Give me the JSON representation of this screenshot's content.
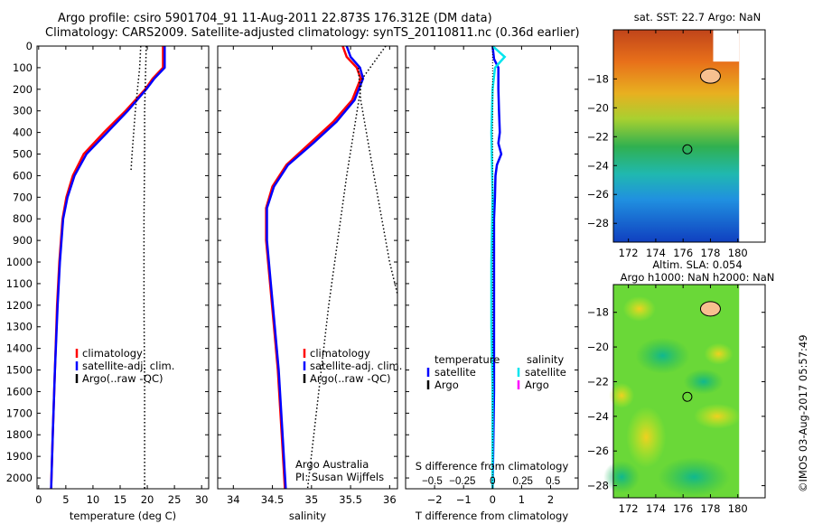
{
  "title": {
    "line1": "Argo profile: csiro 5901704_91 11-Aug-2011 22.873S 176.312E (DM data)",
    "line2": "Climatology: CARS2009. Satellite-adjusted climatology: synTS_20110811.nc (0.36d earlier)"
  },
  "colors": {
    "climatology": "#ff0000",
    "satellite": "#0000ff",
    "argo": "#000000",
    "s_satellite": "#00e5ee",
    "s_argo": "#ff00ff"
  },
  "chart_data": [
    {
      "type": "line",
      "id": "temperature",
      "xlabel": "temperature (deg C)",
      "xlim": [
        -0.3,
        31.3
      ],
      "ylim": [
        0,
        2050
      ],
      "xticks": [
        0,
        5,
        10,
        15,
        20,
        25,
        30
      ],
      "yticks": [
        0,
        100,
        200,
        300,
        400,
        500,
        600,
        700,
        800,
        900,
        1000,
        1100,
        1200,
        1300,
        1400,
        1500,
        1600,
        1700,
        1800,
        1900,
        2000
      ],
      "legend": {
        "placement": "bottom-center",
        "entries": [
          "climatology",
          "satellite-adj. clim.",
          "Argo(..raw -QC)"
        ]
      },
      "series": [
        {
          "name": "climatology",
          "depth": [
            0,
            100,
            150,
            200,
            300,
            400,
            500,
            600,
            700,
            800,
            1000,
            1200,
            1500,
            1800,
            2050
          ],
          "values": [
            22.9,
            22.9,
            21,
            19.6,
            16,
            12,
            8.3,
            6.3,
            5.1,
            4.4,
            3.8,
            3.4,
            3.0,
            2.6,
            2.3
          ]
        },
        {
          "name": "satellite-adj. clim.",
          "depth": [
            0,
            100,
            150,
            200,
            300,
            400,
            500,
            600,
            700,
            800,
            1000,
            1200,
            1500,
            1800,
            2050
          ],
          "values": [
            23.2,
            23.2,
            21.3,
            19.8,
            16.4,
            12.6,
            8.8,
            6.6,
            5.3,
            4.5,
            3.9,
            3.5,
            3.0,
            2.6,
            2.3
          ]
        },
        {
          "name": "Argo(..raw -QC)",
          "depth": [
            0,
            100,
            200,
            300,
            500,
            800,
            1200,
            1600,
            2050
          ],
          "values": [
            19.8,
            19.7,
            19.6,
            19.5,
            19.5,
            19.4,
            19.4,
            19.5,
            19.5
          ]
        },
        {
          "name": "Argo(..raw -QC) 2",
          "depth": [
            0,
            100,
            200,
            300,
            400,
            500,
            580
          ],
          "values": [
            18.8,
            18.6,
            18.2,
            17.8,
            17.5,
            17.2,
            17.0
          ]
        }
      ]
    },
    {
      "type": "line",
      "id": "salinity",
      "xlabel": "salinity",
      "xlim": [
        33.8,
        36.1
      ],
      "ylim": [
        0,
        2050
      ],
      "xticks": [
        34,
        34.5,
        35,
        35.5,
        36
      ],
      "legend": {
        "placement": "bottom-center",
        "entries": [
          "climatology",
          "satellite-adj. clim.",
          "Argo(..raw -QC)"
        ]
      },
      "annotation": [
        "Argo Australia",
        "PI: Susan Wijffels"
      ],
      "series": [
        {
          "name": "climatology",
          "depth": [
            0,
            50,
            100,
            150,
            250,
            350,
            450,
            550,
            650,
            750,
            900,
            1100,
            1300,
            1500,
            1800,
            2050
          ],
          "values": [
            35.4,
            35.45,
            35.58,
            35.63,
            35.52,
            35.28,
            34.98,
            34.68,
            34.5,
            34.42,
            34.42,
            34.47,
            34.52,
            34.57,
            34.62,
            34.66
          ]
        },
        {
          "name": "satellite-adj. clim.",
          "depth": [
            0,
            50,
            100,
            150,
            250,
            350,
            450,
            550,
            650,
            750,
            900,
            1100,
            1300,
            1500,
            1800,
            2050
          ],
          "values": [
            35.45,
            35.5,
            35.62,
            35.66,
            35.55,
            35.32,
            35.02,
            34.7,
            34.52,
            34.43,
            34.43,
            34.48,
            34.53,
            34.58,
            34.63,
            34.67
          ]
        },
        {
          "name": "Argo(..raw -QC)",
          "depth": [
            0,
            150,
            600,
            1200,
            2050
          ],
          "values": [
            35.95,
            35.65,
            35.45,
            35.22,
            34.95
          ]
        },
        {
          "name": "Argo(..raw -QC) 2",
          "depth": [
            100,
            250,
            600,
            1000,
            1150
          ],
          "values": [
            35.6,
            35.63,
            35.8,
            36.0,
            36.1
          ]
        }
      ]
    },
    {
      "type": "line",
      "id": "difference",
      "xlabel": "T difference from climatology",
      "xlabel2": "S difference from climatology",
      "xlim": [
        -3.0,
        2.95
      ],
      "xticks": [
        -2,
        -1,
        0,
        1,
        2
      ],
      "s_xticks": [
        -0.5,
        -0.25,
        0,
        0.25,
        0.5
      ],
      "s_per_t": 0.24,
      "legend": {
        "placement": "center",
        "temperature_header": "temperature",
        "salinity_header": "salinity",
        "entries": [
          "satellite",
          "Argo",
          "satellite",
          "Argo"
        ]
      },
      "series": [
        {
          "name": "T satellite",
          "depth": [
            0,
            60,
            100,
            200,
            300,
            400,
            450,
            500,
            550,
            600,
            700,
            800,
            1000,
            1300,
            1600,
            1900,
            2050
          ],
          "values": [
            0,
            0.05,
            0.2,
            0.2,
            0.22,
            0.25,
            0.2,
            0.3,
            0.15,
            0.1,
            0.08,
            0.05,
            0.05,
            0.05,
            0.05,
            0.02,
            0
          ],
          "unit": "T"
        },
        {
          "name": "S satellite",
          "depth": [
            0,
            50,
            100,
            200,
            400,
            700,
            1000,
            1300,
            1600,
            2050
          ],
          "values": [
            0,
            0.1,
            0.02,
            0.0,
            -0.01,
            0,
            -0.01,
            -0.01,
            0,
            0
          ],
          "unit": "S"
        },
        {
          "name": "climatology zero",
          "depth": [
            0,
            2050
          ],
          "values": [
            0,
            0
          ],
          "unit": "T"
        }
      ]
    }
  ],
  "maps": [
    {
      "title": "sat. SST: 22.7 Argo: NaN",
      "title2": "",
      "lon_ticks": [
        172,
        174,
        176,
        178,
        180
      ],
      "lat_ticks": [
        -18,
        -20,
        -22,
        -24,
        -26,
        -28
      ],
      "lon_range": [
        170.9,
        182.0
      ],
      "lat_range": [
        -14.6,
        -29.3
      ],
      "profile": [
        176.312,
        -22.873
      ]
    },
    {
      "title": "Altim. SLA: 0.054",
      "title2": "Argo h1000: NaN h2000: NaN",
      "lon_ticks": [
        172,
        174,
        176,
        178,
        180
      ],
      "lat_ticks": [
        -18,
        -20,
        -22,
        -24,
        -26,
        -28
      ],
      "lon_range": [
        170.9,
        182.0
      ],
      "lat_range": [
        -16.4,
        -28.7
      ],
      "profile": [
        176.312,
        -22.873
      ]
    }
  ],
  "timestamp": "©IMOS 03-Aug-2017 05:57:49"
}
